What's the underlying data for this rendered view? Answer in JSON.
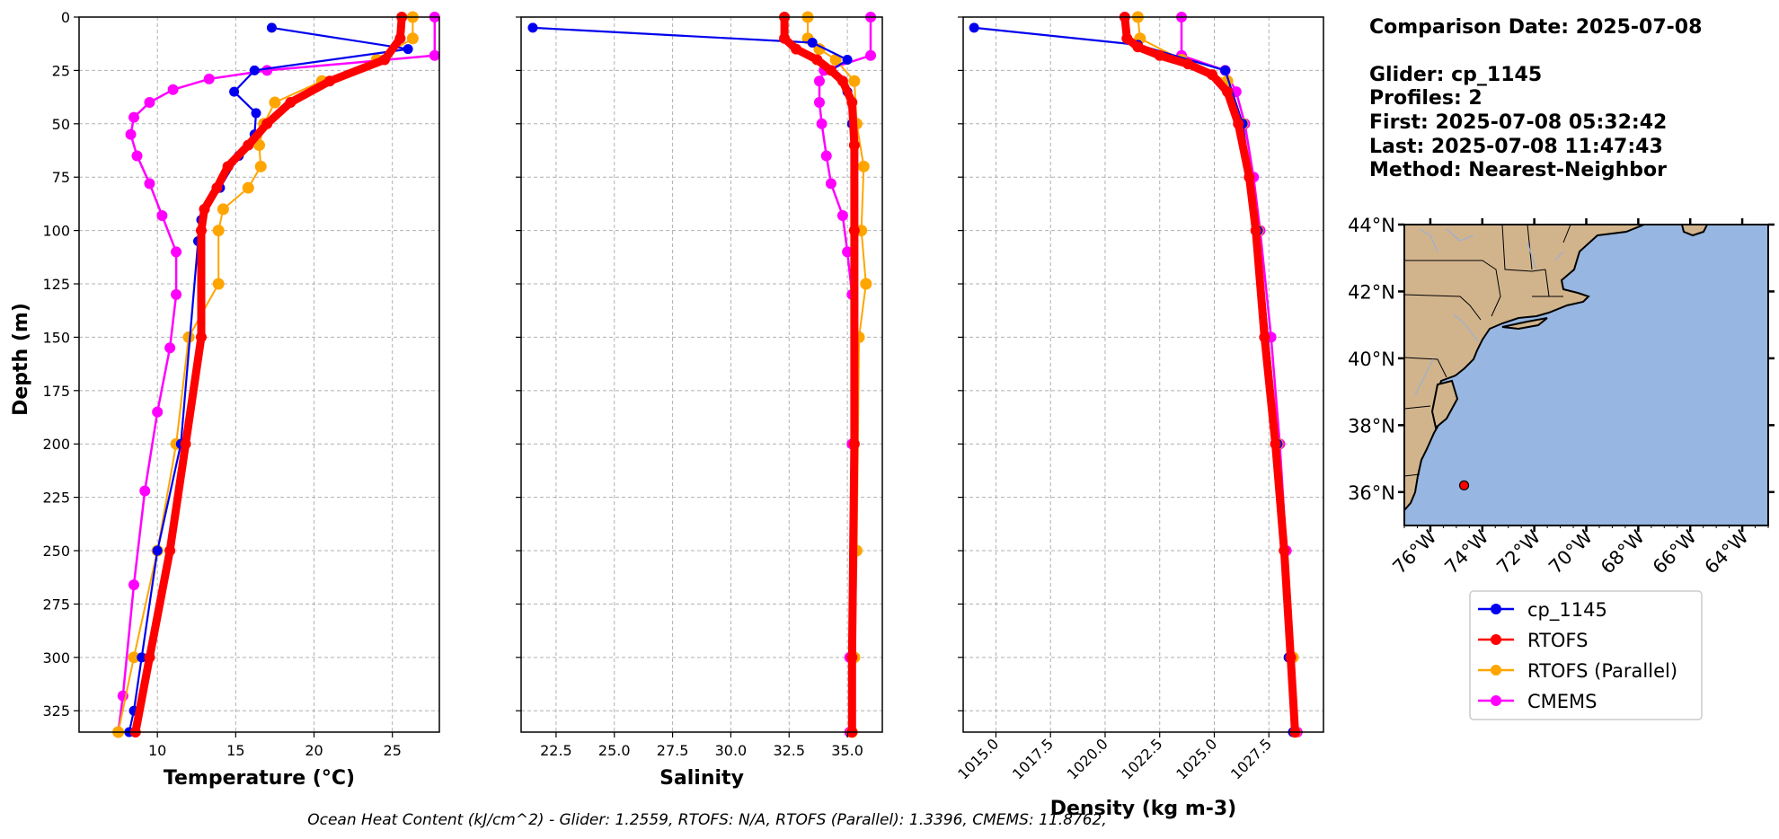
{
  "colors": {
    "glider": "#0000ee",
    "rtofs": "#ff0000",
    "rtofs_parallel": "#ffa500",
    "cmems": "#ff00ff",
    "model_extra": "#00e5e5",
    "land": "#d2b48c",
    "ocean": "#97b6e1",
    "grid": "#b0b0b0"
  },
  "info": {
    "comparison_date": "Comparison Date: 2025-07-08",
    "glider": "Glider: cp_1145",
    "profiles": "Profiles: 2",
    "first": "First: 2025-07-08 05:32:42",
    "last": "Last: 2025-07-08 11:47:43",
    "method": "Method: Nearest-Neighbor"
  },
  "footer": "Ocean Heat Content (kJ/cm^2) - Glider: 1.2559,  RTOFS: N/A,  RTOFS (Parallel): 1.3396,  CMEMS: 11.8762,",
  "legend": [
    "cp_1145",
    "RTOFS",
    "RTOFS (Parallel)",
    "CMEMS"
  ],
  "map": {
    "lat_ticks": [
      "44°N",
      "42°N",
      "40°N",
      "38°N",
      "36°N"
    ],
    "lat_values": [
      44,
      42,
      40,
      38,
      36
    ],
    "lon_ticks": [
      "76°W",
      "74°W",
      "72°W",
      "70°W",
      "68°W",
      "66°W",
      "64°W"
    ],
    "lon_values": [
      -76,
      -74,
      -72,
      -70,
      -68,
      -66,
      -64
    ],
    "lon_range": [
      -77,
      -63
    ],
    "lat_range": [
      35,
      44
    ],
    "glider_position": {
      "lon": -74.7,
      "lat": 36.2
    }
  },
  "chart_data": [
    {
      "type": "line",
      "name": "temperature",
      "xlabel": "Temperature (°C)",
      "ylabel": "Depth (m)",
      "xlim": [
        5,
        28
      ],
      "ylim": [
        335,
        0
      ],
      "xticks": [
        10,
        15,
        20,
        25
      ],
      "xtick_labels": [
        "10",
        "15",
        "20",
        "25"
      ],
      "yticks": [
        0,
        25,
        50,
        75,
        100,
        125,
        150,
        175,
        200,
        225,
        250,
        275,
        300,
        325
      ],
      "ytick_labels": [
        "0",
        "25",
        "50",
        "75",
        "100",
        "125",
        "150",
        "175",
        "200",
        "225",
        "250",
        "275",
        "300",
        "325"
      ],
      "grid": true,
      "series": [
        {
          "name": "cp_1145",
          "depth": [
            5,
            15,
            25,
            35,
            45,
            55,
            65,
            80,
            95,
            105,
            200,
            250,
            300,
            325,
            335
          ],
          "values": [
            17.3,
            26.0,
            16.2,
            14.9,
            16.3,
            16.2,
            15.2,
            14.0,
            12.8,
            12.6,
            11.5,
            10.0,
            9.0,
            8.5,
            8.2
          ]
        },
        {
          "name": "RTOFS",
          "depth": [
            0,
            10,
            20,
            30,
            40,
            50,
            60,
            70,
            80,
            90,
            100,
            150,
            200,
            250,
            300,
            335
          ],
          "values": [
            25.6,
            25.5,
            24.5,
            21.0,
            18.5,
            17.0,
            15.8,
            14.5,
            13.8,
            13.0,
            12.8,
            12.8,
            11.8,
            10.8,
            9.5,
            8.6
          ]
        },
        {
          "name": "RTOFS (Parallel)",
          "depth": [
            0,
            10,
            20,
            30,
            40,
            50,
            60,
            70,
            80,
            90,
            100,
            125,
            150,
            200,
            250,
            300,
            335
          ],
          "values": [
            26.3,
            26.3,
            24.0,
            20.5,
            17.5,
            16.8,
            16.5,
            16.6,
            15.8,
            14.2,
            13.9,
            13.9,
            12.0,
            11.2,
            10.0,
            8.5,
            7.5
          ]
        },
        {
          "name": "CMEMS",
          "depth": [
            0,
            18,
            25,
            29,
            34,
            40,
            47,
            55,
            65,
            78,
            93,
            110,
            130,
            155,
            185,
            222,
            266,
            318,
            335
          ],
          "values": [
            27.7,
            27.7,
            17.0,
            13.3,
            11.0,
            9.5,
            8.5,
            8.3,
            8.7,
            9.5,
            10.3,
            11.2,
            11.2,
            10.8,
            10.0,
            9.2,
            8.5,
            7.8,
            7.5
          ]
        }
      ]
    },
    {
      "type": "line",
      "name": "salinity",
      "xlabel": "Salinity",
      "ylabel": "",
      "xlim": [
        21,
        36.5
      ],
      "ylim": [
        335,
        0
      ],
      "xticks": [
        22.5,
        25.0,
        27.5,
        30.0,
        32.5,
        35.0
      ],
      "xtick_labels": [
        "22.5",
        "25.0",
        "27.5",
        "30.0",
        "32.5",
        "35.0"
      ],
      "grid": true,
      "series": [
        {
          "name": "cp_1145",
          "depth": [
            5,
            12,
            20,
            25,
            35,
            50,
            100,
            200,
            300,
            335
          ],
          "values": [
            21.5,
            33.5,
            35.0,
            34.3,
            35.0,
            35.2,
            35.3,
            35.3,
            35.2,
            35.2
          ]
        },
        {
          "name": "RTOFS",
          "depth": [
            0,
            10,
            15,
            20,
            25,
            30,
            40,
            60,
            100,
            200,
            300,
            335
          ],
          "values": [
            32.3,
            32.3,
            32.8,
            33.7,
            34.3,
            34.8,
            35.2,
            35.3,
            35.3,
            35.3,
            35.2,
            35.2
          ]
        },
        {
          "name": "RTOFS (Parallel)",
          "depth": [
            0,
            10,
            15,
            20,
            30,
            50,
            70,
            100,
            125,
            150,
            250,
            300,
            335
          ],
          "values": [
            33.3,
            33.3,
            33.8,
            34.5,
            35.3,
            35.4,
            35.7,
            35.6,
            35.8,
            35.5,
            35.4,
            35.3,
            35.2
          ]
        },
        {
          "name": "CMEMS",
          "depth": [
            0,
            18,
            25,
            30,
            40,
            50,
            65,
            78,
            93,
            110,
            130,
            200,
            300,
            335
          ],
          "values": [
            36.0,
            36.0,
            34.0,
            33.8,
            33.8,
            33.9,
            34.1,
            34.3,
            34.8,
            35.0,
            35.2,
            35.2,
            35.1,
            35.1
          ]
        }
      ]
    },
    {
      "type": "line",
      "name": "density",
      "xlabel": "Density (kg m-3)",
      "ylabel": "",
      "xlim": [
        1013.5,
        1030
      ],
      "ylim": [
        335,
        0
      ],
      "xticks": [
        1015.0,
        1017.5,
        1020.0,
        1022.5,
        1025.0,
        1027.5
      ],
      "xtick_labels": [
        "1015.0",
        "1017.5",
        "1020.0",
        "1022.5",
        "1025.0",
        "1027.5"
      ],
      "grid": true,
      "series": [
        {
          "name": "cp_1145",
          "depth": [
            5,
            13,
            25,
            50,
            100,
            200,
            300,
            335
          ],
          "values": [
            1014.0,
            1021.5,
            1025.5,
            1026.3,
            1027.0,
            1027.9,
            1028.4,
            1028.6
          ]
        },
        {
          "name": "RTOFS",
          "depth": [
            0,
            10,
            14,
            18,
            22,
            27,
            35,
            50,
            75,
            100,
            150,
            200,
            250,
            300,
            335
          ],
          "values": [
            1020.9,
            1021.0,
            1021.5,
            1022.5,
            1023.8,
            1024.9,
            1025.6,
            1026.1,
            1026.6,
            1026.9,
            1027.3,
            1027.8,
            1028.2,
            1028.5,
            1028.7
          ]
        },
        {
          "name": "RTOFS (Parallel)",
          "depth": [
            0,
            10,
            20,
            30,
            50,
            100,
            200,
            300,
            335
          ],
          "values": [
            1021.5,
            1021.6,
            1023.5,
            1025.6,
            1026.3,
            1027.0,
            1027.9,
            1028.6,
            1028.7
          ]
        },
        {
          "name": "CMEMS",
          "depth": [
            0,
            18,
            25,
            35,
            50,
            75,
            100,
            150,
            200,
            250,
            300,
            335
          ],
          "values": [
            1023.5,
            1023.5,
            1025.5,
            1026.0,
            1026.4,
            1026.8,
            1027.1,
            1027.6,
            1028.0,
            1028.3,
            1028.6,
            1028.8
          ]
        }
      ]
    }
  ]
}
